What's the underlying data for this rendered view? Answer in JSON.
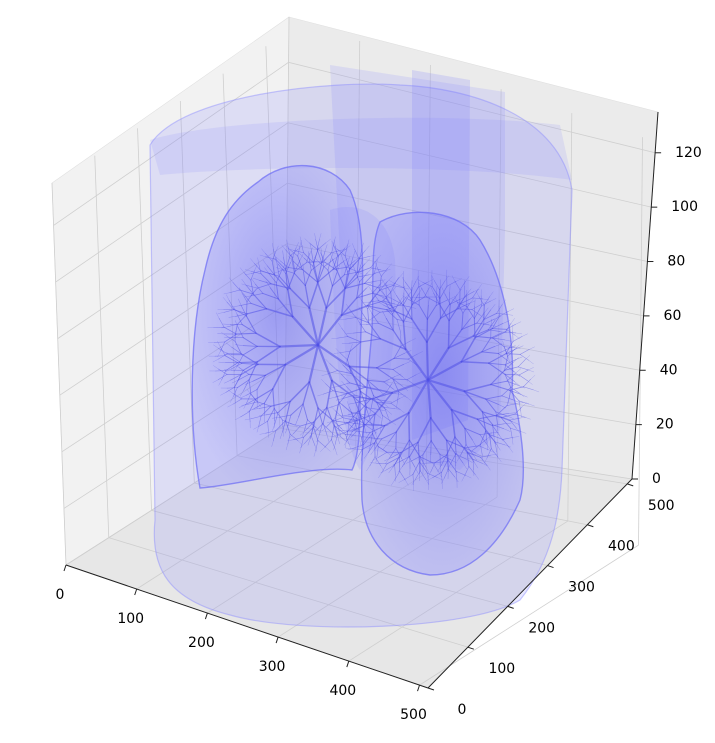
{
  "chart_data": {
    "type": "3d-volume",
    "title": "",
    "axes": {
      "x": {
        "label": "",
        "range": [
          0,
          512
        ],
        "ticks": [
          0,
          100,
          200,
          300,
          400,
          500
        ]
      },
      "y": {
        "label": "",
        "range": [
          0,
          512
        ],
        "ticks": [
          0,
          100,
          200,
          300,
          400,
          500
        ]
      },
      "z": {
        "label": "",
        "range": [
          0,
          135
        ],
        "ticks": [
          0,
          20,
          40,
          60,
          80,
          100,
          120
        ]
      }
    },
    "grid": true,
    "mesh_color": "#7b7bff",
    "pane_color": "#f2f2f2",
    "grid_color": "#cfcfcf",
    "structures": [
      "body-surface",
      "right-lung",
      "left-lung",
      "airways"
    ]
  }
}
